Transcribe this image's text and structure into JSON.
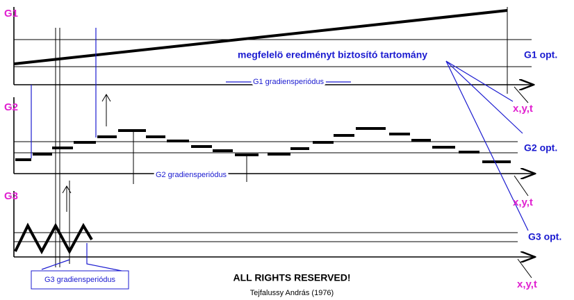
{
  "labels": {
    "g1": "G1",
    "g2": "G2",
    "g3": "G3"
  },
  "band_text": "megfelelö eredményt biztosító tartomány",
  "optima": {
    "g1": "G1 opt.",
    "g2": "G2 opt.",
    "g3": "G3 opt."
  },
  "periods": {
    "g1": "G1 gradiensperiódus",
    "g2": "G2 gradiensperiódus",
    "g3": "G3 gradiensperiódus"
  },
  "axis_labels": [
    "x,y,t",
    "x,y,t",
    "x,y,t"
  ],
  "footer": {
    "rights": "ALL RIGHTS RESERVED!",
    "author": "Tejfalussy András (1976)"
  }
}
